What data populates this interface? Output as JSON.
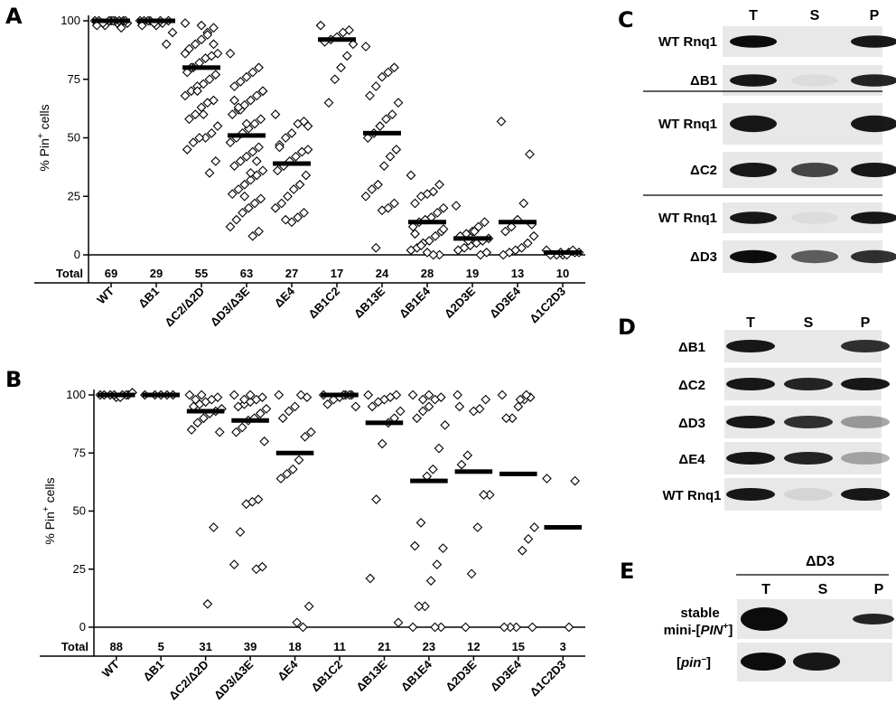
{
  "figure": {
    "panels": {
      "A": "A",
      "B": "B",
      "C": "C",
      "D": "D",
      "E": "E"
    }
  },
  "chart_data": [
    {
      "panel": "A",
      "type": "scatter",
      "ylabel": "% Pin+ cells",
      "ylabel_parts": [
        "% Pin",
        "+",
        " cells"
      ],
      "ylim": [
        0,
        100
      ],
      "yticks": [
        "0",
        "25",
        "50",
        "75",
        "100"
      ],
      "totals_label": "Total",
      "categories": [
        "WT",
        "ΔB1",
        "ΔC2/Δ2D",
        "ΔD3/Δ3E",
        "ΔE4",
        "ΔB1C2",
        "ΔB13E",
        "ΔB1E4",
        "Δ2D3E",
        "ΔD3E4",
        "Δ1C2D3"
      ],
      "totals": [
        "69",
        "29",
        "55",
        "63",
        "27",
        "17",
        "24",
        "28",
        "19",
        "13",
        "10"
      ],
      "means": [
        100,
        100,
        80,
        51,
        39,
        92,
        52,
        14,
        7,
        14,
        1
      ],
      "points": [
        [
          100,
          100,
          99,
          100,
          98,
          100,
          99,
          97,
          100,
          100,
          99,
          98,
          100,
          100,
          100
        ],
        [
          100,
          100,
          99,
          98,
          100,
          100,
          95,
          90,
          100,
          99,
          100,
          98
        ],
        [
          99,
          97,
          95,
          92,
          90,
          88,
          86,
          85,
          84,
          82,
          80,
          78,
          77,
          75,
          73,
          72,
          70,
          68,
          66,
          65,
          63,
          60,
          58,
          55,
          52,
          50,
          50,
          48,
          45,
          40,
          35,
          60,
          70,
          80,
          86,
          90,
          94,
          98
        ],
        [
          86,
          80,
          78,
          76,
          74,
          72,
          70,
          68,
          66,
          64,
          62,
          60,
          58,
          56,
          54,
          52,
          50,
          48,
          46,
          44,
          42,
          40,
          38,
          36,
          34,
          32,
          30,
          28,
          26,
          24,
          22,
          20,
          18,
          15,
          12,
          10,
          8,
          56,
          62,
          66,
          70,
          40,
          35,
          25,
          63
        ],
        [
          60,
          57,
          56,
          52,
          50,
          47,
          45,
          44,
          42,
          40,
          38,
          36,
          34,
          30,
          28,
          25,
          22,
          20,
          18,
          16,
          14,
          15,
          46,
          55
        ],
        [
          98,
          96,
          95,
          93,
          92,
          91,
          90,
          85,
          80,
          75,
          65
        ],
        [
          89,
          80,
          78,
          76,
          72,
          68,
          65,
          60,
          58,
          55,
          52,
          50,
          45,
          42,
          38,
          30,
          28,
          25,
          22,
          20,
          19,
          3
        ],
        [
          34,
          30,
          27,
          26,
          25,
          22,
          20,
          18,
          16,
          15,
          14,
          12,
          10,
          8,
          6,
          5,
          3,
          2,
          0,
          0,
          1,
          4,
          9,
          11
        ],
        [
          21,
          14,
          12,
          10,
          9,
          8,
          7,
          6,
          5,
          4,
          3,
          2,
          1,
          0,
          10,
          6
        ],
        [
          57,
          43,
          22,
          15,
          12,
          10,
          8,
          5,
          3,
          2,
          1,
          0,
          13
        ],
        [
          2,
          1,
          1,
          0,
          0,
          0,
          1,
          2,
          0,
          1
        ]
      ]
    },
    {
      "panel": "B",
      "type": "scatter",
      "ylabel": "% Pin+ cells",
      "ylabel_parts": [
        "% Pin",
        "+",
        " cells"
      ],
      "ylim": [
        0,
        100
      ],
      "yticks": [
        "0",
        "25",
        "50",
        "75",
        "100"
      ],
      "totals_label": "Total",
      "categories": [
        "WT",
        "ΔB1",
        "ΔC2/Δ2D",
        "ΔD3/Δ3E",
        "ΔE4",
        "ΔB1C2",
        "ΔB13E",
        "ΔB1E4",
        "Δ2D3E",
        "ΔD3E4",
        "Δ1C2D3"
      ],
      "totals": [
        "88",
        "5",
        "31",
        "39",
        "18",
        "11",
        "21",
        "23",
        "12",
        "15",
        "3"
      ],
      "means": [
        100,
        100,
        93,
        89,
        75,
        100,
        88,
        63,
        67,
        66,
        43
      ],
      "points": [
        [
          100,
          100,
          100,
          99,
          100,
          100,
          101,
          100,
          99,
          100
        ],
        [
          100,
          100,
          100,
          100,
          100
        ],
        [
          100,
          99,
          98,
          97,
          96,
          95,
          94,
          93,
          92,
          90,
          88,
          85,
          84,
          43,
          10,
          100,
          98
        ],
        [
          100,
          99,
          98,
          97,
          96,
          95,
          94,
          92,
          90,
          89,
          86,
          84,
          80,
          55,
          54,
          53,
          41,
          27,
          26,
          25,
          100,
          98
        ],
        [
          100,
          99,
          100,
          95,
          93,
          90,
          84,
          82,
          72,
          68,
          66,
          64,
          9,
          0,
          2
        ],
        [
          100,
          100,
          100,
          99,
          98,
          96,
          95,
          100,
          100
        ],
        [
          100,
          100,
          99,
          98,
          97,
          95,
          93,
          90,
          88,
          79,
          55,
          21,
          2
        ],
        [
          100,
          99,
          98,
          95,
          93,
          90,
          87,
          77,
          68,
          65,
          45,
          35,
          34,
          27,
          20,
          9,
          9,
          0,
          0,
          0,
          100,
          98
        ],
        [
          100,
          98,
          94,
          93,
          74,
          70,
          57,
          57,
          43,
          23,
          0,
          95
        ],
        [
          100,
          99,
          98,
          95,
          90,
          90,
          43,
          38,
          33,
          0,
          0,
          0,
          0,
          100,
          98
        ],
        [
          64,
          63,
          0
        ]
      ]
    }
  ],
  "blots": {
    "C": {
      "lanes": [
        "T",
        "S",
        "P"
      ],
      "rows": [
        "WT Rnq1",
        "ΔB1",
        "WT Rnq1",
        "ΔC2",
        "WT Rnq1",
        "ΔD3"
      ]
    },
    "D": {
      "lanes": [
        "T",
        "S",
        "P"
      ],
      "rows": [
        "ΔB1",
        "ΔC2",
        "ΔD3",
        "ΔE4",
        "WT Rnq1"
      ]
    },
    "E": {
      "header": "ΔD3",
      "lanes": [
        "T",
        "S",
        "P"
      ],
      "row1_line1": "stable",
      "row1_line2_parts": [
        "mini-[",
        "PIN",
        "+",
        "]"
      ],
      "row2_parts": [
        "[",
        "pin",
        "–",
        "]"
      ]
    }
  }
}
